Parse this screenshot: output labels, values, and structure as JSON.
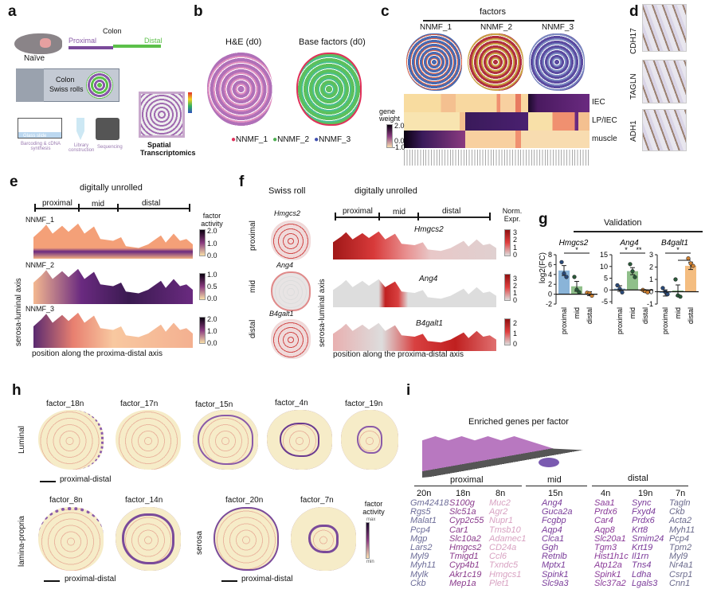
{
  "panels": {
    "a": "a",
    "b": "b",
    "c": "c",
    "d": "d",
    "e": "e",
    "f": "f",
    "g": "g",
    "h": "h",
    "i": "i"
  },
  "a": {
    "colon": "Colon",
    "proximal": "Proximal",
    "distal": "Distal",
    "naive": "Naïve",
    "swiss": "Colon",
    "swiss2": "Swiss rolls",
    "glass": "Glass slide",
    "barcoding": "Barcoding & cDNA synthesis",
    "library": "Library construction",
    "sequencing": "Sequencing",
    "spatial1": "Spatial",
    "spatial2": "Transcriptomics"
  },
  "b": {
    "he": "H&E (d0)",
    "base": "Base factors (d0)",
    "legend": [
      "NNMF_1",
      "NNMF_2",
      "NNMF_3"
    ],
    "legend_colors": [
      "#e0305a",
      "#4caf50",
      "#4050b0"
    ]
  },
  "c": {
    "factors": "factors",
    "names": [
      "NNMF_1",
      "NNMF_2",
      "NNMF_3"
    ],
    "rows": [
      "IEC",
      "LP/IEC",
      "muscle"
    ],
    "cbar_title": "gene weight",
    "cbar_ticks": [
      "2.0",
      "0.0",
      "-1.0"
    ]
  },
  "d": {
    "labels": [
      "CDH17",
      "TAGLN",
      "ADH1"
    ]
  },
  "e": {
    "title": "digitally unrolled",
    "regions": [
      "proximal",
      "mid",
      "distal"
    ],
    "factors": [
      "NNMF_1",
      "NNMF_2",
      "NNMF_3"
    ],
    "cbar_title": "factor activity",
    "cbars": [
      [
        "2.0",
        "1.0",
        "0.0"
      ],
      [
        "1.0",
        "0.5",
        "0.0"
      ],
      [
        "2.0",
        "1.0",
        "0.0"
      ]
    ],
    "yaxis": "serosa-luminal axis",
    "xaxis": "position along the proxima-distal axis"
  },
  "f": {
    "swiss": "Swiss roll",
    "title": "digitally unrolled",
    "regions": [
      "proximal",
      "mid",
      "distal"
    ],
    "row_labels": [
      "proximal",
      "mid",
      "distal"
    ],
    "genes": [
      "Hmgcs2",
      "Ang4",
      "B4galt1"
    ],
    "cbar_title": "Norm. Expr.",
    "cbars": [
      [
        "3",
        "2",
        "1",
        "0"
      ],
      [
        "3",
        "2",
        "1",
        "0"
      ],
      [
        "2",
        "1",
        "0"
      ]
    ],
    "yaxis": "serosa-luminal axis",
    "xaxis": "position along the proxima-distal axis"
  },
  "chart_data": {
    "type": "bar",
    "title": "Validation",
    "ylabel": "log2(FC)",
    "categories": [
      "proximal",
      "mid",
      "distal"
    ],
    "colors": [
      "#8ab4d8",
      "#8fbf8a",
      "#f4bd80"
    ],
    "panels": [
      {
        "gene": "Hmgcs2",
        "ylim": [
          -2,
          8
        ],
        "ticks": [
          "8",
          "6",
          "4",
          "2",
          "0",
          "-2"
        ],
        "tickvals": [
          8,
          6,
          4,
          2,
          0,
          -2
        ],
        "values": [
          4.8,
          1.6,
          0.1
        ],
        "errors": [
          1.0,
          1.0,
          0.4
        ],
        "points": [
          [
            6.5,
            4.2,
            3.5
          ],
          [
            3.5,
            0.9,
            0.4
          ],
          [
            0.3,
            0.2,
            -0.3
          ]
        ],
        "sig": [
          {
            "from": 0,
            "to": 2,
            "label": "*"
          }
        ]
      },
      {
        "gene": "Ang4",
        "ylim": [
          -6,
          15
        ],
        "ticks": [
          "15",
          "10",
          "5",
          "0",
          "-5"
        ],
        "tickvals": [
          15,
          10,
          5,
          0,
          -5
        ],
        "values": [
          0.6,
          8.0,
          -0.5
        ],
        "errors": [
          1.2,
          1.5,
          0.5
        ],
        "points": [
          [
            2,
            0.5,
            -1
          ],
          [
            11,
            8,
            5.5
          ],
          [
            0,
            -0.5,
            -1
          ]
        ],
        "sig": [
          {
            "from": 0,
            "to": 1,
            "label": "*"
          },
          {
            "from": 1,
            "to": 2,
            "label": "**"
          }
        ]
      },
      {
        "gene": "B4galt1",
        "ylim": [
          -1,
          3
        ],
        "ticks": [
          "3",
          "2",
          "1",
          "0",
          "-1"
        ],
        "tickvals": [
          3,
          2,
          1,
          0,
          -1
        ],
        "values": [
          -0.1,
          0.1,
          2.1
        ],
        "errors": [
          0.25,
          0.45,
          0.3
        ],
        "points": [
          [
            0.3,
            0,
            -0.2
          ],
          [
            1.0,
            -0.3,
            -0.4
          ],
          [
            2.7,
            2.3,
            2.1
          ]
        ],
        "sig": [
          {
            "from": 0,
            "to": 2,
            "label": "*"
          },
          {
            "from": 1,
            "to": 2,
            "label": ""
          }
        ]
      }
    ]
  },
  "h": {
    "top": [
      "factor_18n",
      "factor_17n",
      "factor_15n",
      "factor_4n",
      "factor_19n"
    ],
    "bottom_lp": [
      "factor_8n",
      "factor_14n"
    ],
    "bottom_s": [
      "factor_20n",
      "factor_7n"
    ],
    "rows": [
      "Luminal",
      "lamina-propria",
      "serosa"
    ],
    "axis": "proximal-distal",
    "cbar_title": "factor activity",
    "cbar_max": "max",
    "cbar_min": "min"
  },
  "i": {
    "title": "Enriched genes per factor",
    "groups": [
      "proximal",
      "mid",
      "distal"
    ],
    "columns": [
      {
        "name": "20n",
        "color": "#6c6c98",
        "genes": [
          "Gm42418",
          "Rgs5",
          "Malat1",
          "Pcp4",
          "Mgp",
          "Lars2",
          "Myl9",
          "Myh11",
          "Mylk",
          "Ckb"
        ]
      },
      {
        "name": "18n",
        "color": "#8a3a8c",
        "genes": [
          "S100g",
          "Slc51a",
          "Cyp2c55",
          "Car1",
          "Slc10a2",
          "Hmgcs2",
          "Tmigd1",
          "Cyp4b1",
          "Akr1c19",
          "Mep1a"
        ]
      },
      {
        "name": "8n",
        "color": "#d8a2c2",
        "genes": [
          "Muc2",
          "Agr2",
          "Nupr1",
          "Tmsb10",
          "Adamec1",
          "CD24a",
          "Ccl6",
          "Txndc5",
          "Hmgcs1",
          "Plet1"
        ]
      },
      {
        "name": "15n",
        "color": "#7a3c9a",
        "genes": [
          "Ang4",
          "Guca2a",
          "Fcgbp",
          "Aqp4",
          "Clca1",
          "Ggh",
          "Retnlb",
          "Mptx1",
          "Spink1",
          "Slc9a3"
        ]
      },
      {
        "name": "4n",
        "color": "#8a3a98",
        "genes": [
          "Saa1",
          "Prdx6",
          "Car4",
          "Aqp8",
          "Slc20a1",
          "Tgm3",
          "Hist1h1c",
          "Atp12a",
          "Spink1",
          "Slc37a2"
        ]
      },
      {
        "name": "19n",
        "color": "#7a3a9a",
        "genes": [
          "Sync",
          "Fxyd4",
          "Prdx6",
          "Krt8",
          "Smim24",
          "Krt19",
          "Il1rn",
          "Tns4",
          "Ldha",
          "Lgals3"
        ]
      },
      {
        "name": "7n",
        "color": "#6a6a8c",
        "genes": [
          "Tagln",
          "Ckb",
          "Acta2",
          "Myh11",
          "Pcp4",
          "Tpm2",
          "Myl9",
          "Nr4a1",
          "Csrp1",
          "Cnn1"
        ]
      }
    ]
  }
}
